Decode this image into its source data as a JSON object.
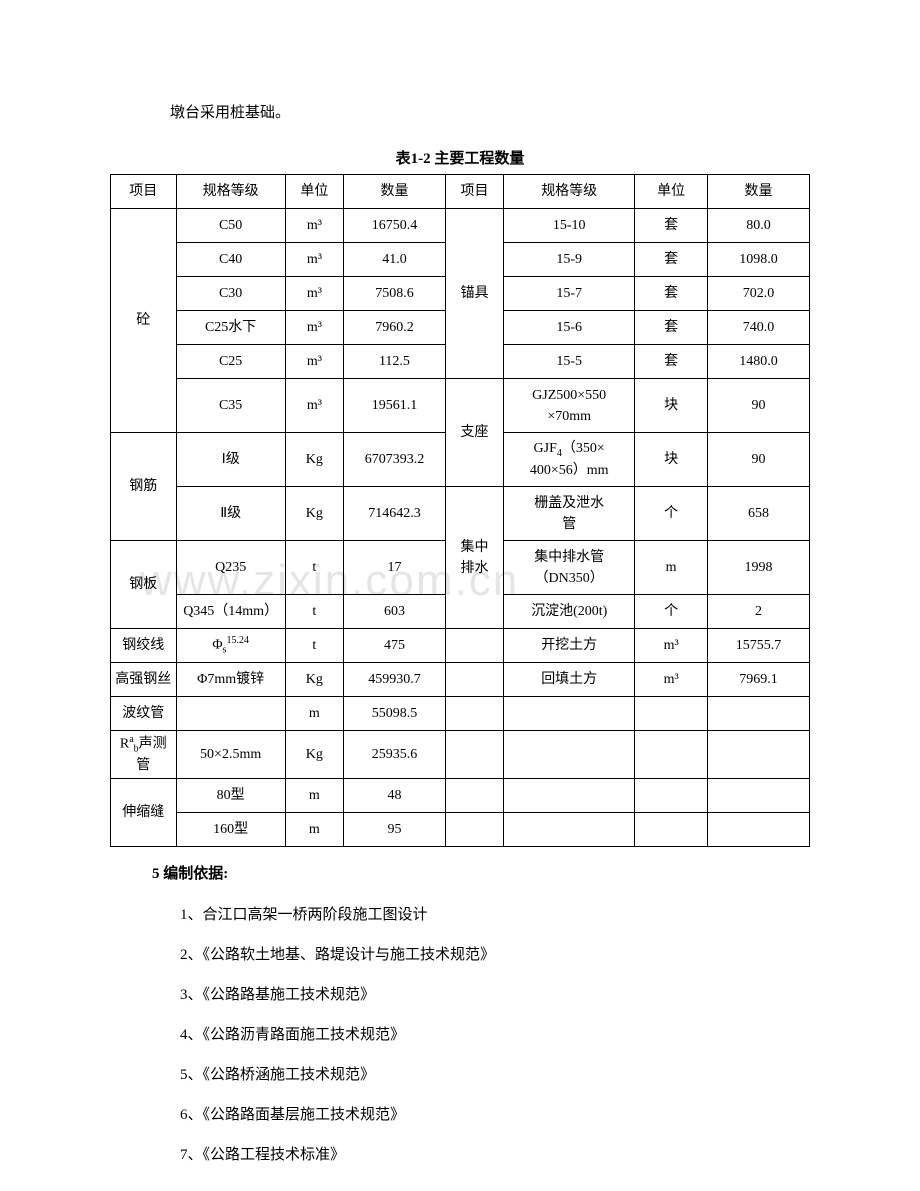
{
  "intro": "墩台采用桩基础。",
  "caption": "表1-2 主要工程数量",
  "watermark": "www.zixin.com.cn",
  "header": {
    "c1": "项目",
    "c2": "规格等级",
    "c3": "单位",
    "c4": "数量",
    "c5": "项目",
    "c6": "规格等级",
    "c7": "单位",
    "c8": "数量"
  },
  "left": {
    "p1": "砼",
    "p1r": [
      {
        "spec": "C50",
        "unit": "m³",
        "qty": "16750.4"
      },
      {
        "spec": "C40",
        "unit": "m³",
        "qty": "41.0"
      },
      {
        "spec": "C30",
        "unit": "m³",
        "qty": "7508.6"
      },
      {
        "spec": "C25水下",
        "unit": "m³",
        "qty": "7960.2"
      },
      {
        "spec": "C25",
        "unit": "m³",
        "qty": "112.5"
      },
      {
        "spec": "C35",
        "unit": "m³",
        "qty": "19561.1"
      }
    ],
    "p2": "钢筋",
    "p2r": [
      {
        "spec": "Ⅰ级",
        "unit": "Kg",
        "qty": "6707393.2"
      },
      {
        "spec": "Ⅱ级",
        "unit": "Kg",
        "qty": "714642.3"
      }
    ],
    "p3": "钢板",
    "p3r": [
      {
        "spec": "Q235",
        "unit": "t",
        "qty": "17"
      },
      {
        "spec": "Q345（14mm）",
        "unit": "t",
        "qty": "603"
      }
    ],
    "p4": {
      "name": "钢绞线",
      "spec_html": "Φ<span class='sub'>s</span><span class='sup'>15.24</span>",
      "unit": "t",
      "qty": "475"
    },
    "p5": {
      "name": "高强钢丝",
      "spec": "Φ7mm镀锌",
      "unit": "Kg",
      "qty": "459930.7"
    },
    "p6": {
      "name": "波纹管",
      "spec": "",
      "unit": "m",
      "qty": "55098.5"
    },
    "p7": {
      "name_html": "R<span class='sup'>a</span><span class='sub'>b</span>声测管",
      "spec": "50×2.5mm",
      "unit": "Kg",
      "qty": "25935.6"
    },
    "p8": "伸缩缝",
    "p8r": [
      {
        "spec": "80型",
        "unit": "m",
        "qty": "48"
      },
      {
        "spec": "160型",
        "unit": "m",
        "qty": "95"
      }
    ]
  },
  "right": {
    "p1": "锚具",
    "p1r": [
      {
        "spec": "15-10",
        "unit": "套",
        "qty": "80.0"
      },
      {
        "spec": "15-9",
        "unit": "套",
        "qty": "1098.0"
      },
      {
        "spec": "15-7",
        "unit": "套",
        "qty": "702.0"
      },
      {
        "spec": "15-6",
        "unit": "套",
        "qty": "740.0"
      },
      {
        "spec": "15-5",
        "unit": "套",
        "qty": "1480.0"
      }
    ],
    "p2": "支座",
    "p2r": [
      {
        "spec_html": "GJZ500×550<br>×70mm",
        "unit": "块",
        "qty": "90"
      },
      {
        "spec_html": "GJF<span class='sub'>4</span>（350×<br>400×56）mm",
        "unit": "块",
        "qty": "90"
      }
    ],
    "p3": "集中排水",
    "p3r": [
      {
        "spec_html": "栅盖及泄水<br>管",
        "unit": "个",
        "qty": "658"
      },
      {
        "spec_html": "集中排水管<br>（DN350）",
        "unit": "m",
        "qty": "1998"
      },
      {
        "spec": "沉淀池(200t)",
        "unit": "个",
        "qty": "2"
      }
    ],
    "p4": {
      "spec": "开挖土方",
      "unit": "m³",
      "qty": "15755.7"
    },
    "p5": {
      "spec": "回填土方",
      "unit": "m³",
      "qty": "7969.1"
    }
  },
  "section_heading": "5 编制依据:",
  "list": [
    "1、合江口高架一桥两阶段施工图设计",
    "2、《公路软土地基、路堤设计与施工技术规范》",
    "3、《公路路基施工技术规范》",
    "4、《公路沥青路面施工技术规范》",
    "5、《公路桥涵施工技术规范》",
    "6、《公路路面基层施工技术规范》",
    "7、《公路工程技术标准》"
  ]
}
